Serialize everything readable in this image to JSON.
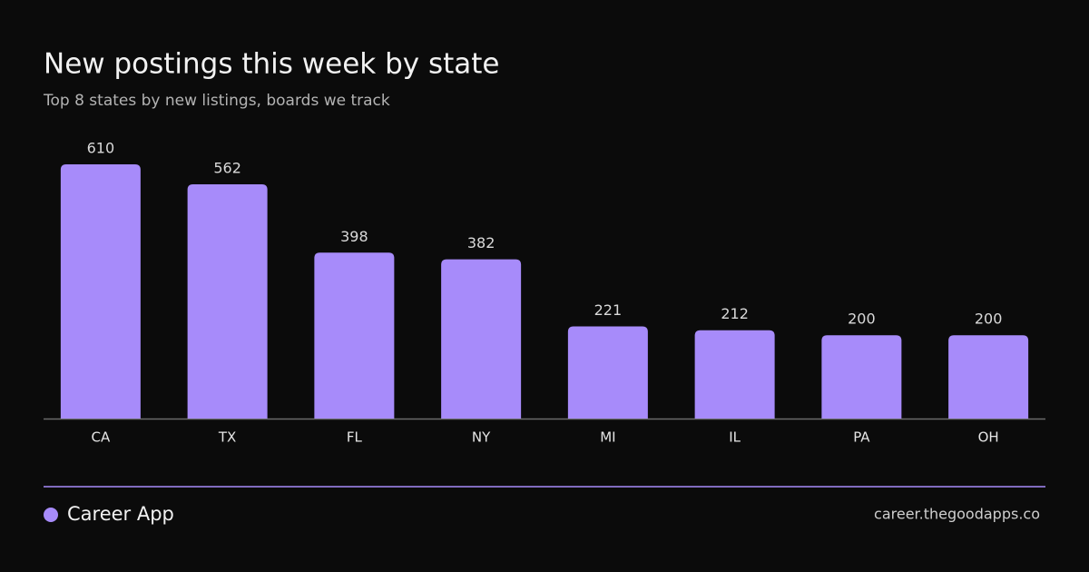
{
  "chart_data": {
    "type": "bar",
    "title": "New postings this week by state",
    "subtitle": "Top 8 states by new listings, boards we track",
    "categories": [
      "CA",
      "TX",
      "FL",
      "NY",
      "MI",
      "IL",
      "PA",
      "OH"
    ],
    "values": [
      610,
      562,
      398,
      382,
      221,
      212,
      200,
      200
    ],
    "color": "#a78bfa"
  },
  "footer": {
    "brand": "Career App",
    "url": "career.thegoodapps.co"
  }
}
